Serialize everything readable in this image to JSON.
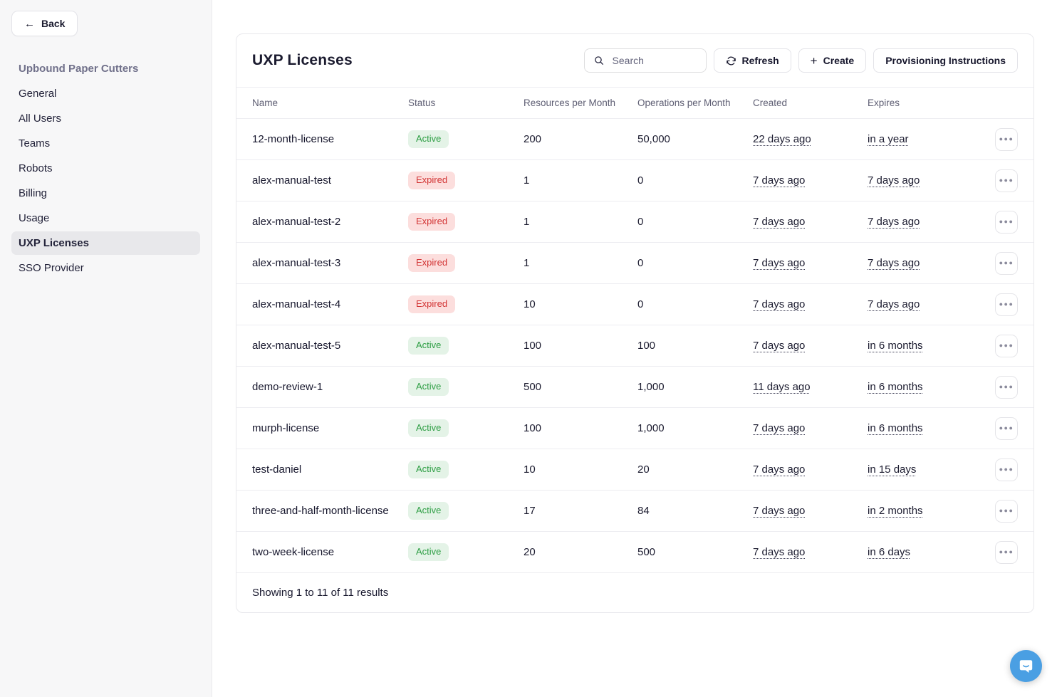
{
  "colors": {
    "active_badge_bg": "#e4f3e7",
    "active_badge_text": "#2e9e44",
    "expired_badge_bg": "#fcdedd",
    "expired_badge_text": "#d23434",
    "chat_bubble_bg": "#4a9fe3"
  },
  "sidebar": {
    "back_label": "Back",
    "org_name": "Upbound Paper Cutters",
    "items": [
      {
        "label": "General",
        "selected": false
      },
      {
        "label": "All Users",
        "selected": false
      },
      {
        "label": "Teams",
        "selected": false
      },
      {
        "label": "Robots",
        "selected": false
      },
      {
        "label": "Billing",
        "selected": false
      },
      {
        "label": "Usage",
        "selected": false
      },
      {
        "label": "UXP Licenses",
        "selected": true
      },
      {
        "label": "SSO Provider",
        "selected": false
      }
    ]
  },
  "header": {
    "title": "UXP Licenses",
    "search_placeholder": "Search",
    "refresh_label": "Refresh",
    "create_label": "Create",
    "provisioning_label": "Provisioning Instructions"
  },
  "table": {
    "columns": [
      "Name",
      "Status",
      "Resources per Month",
      "Operations per Month",
      "Created",
      "Expires"
    ],
    "rows": [
      {
        "name": "12-month-license",
        "status": "Active",
        "resources": "200",
        "operations": "50,000",
        "created": "22 days ago",
        "expires": "in a year"
      },
      {
        "name": "alex-manual-test",
        "status": "Expired",
        "resources": "1",
        "operations": "0",
        "created": "7 days ago",
        "expires": "7 days ago"
      },
      {
        "name": "alex-manual-test-2",
        "status": "Expired",
        "resources": "1",
        "operations": "0",
        "created": "7 days ago",
        "expires": "7 days ago"
      },
      {
        "name": "alex-manual-test-3",
        "status": "Expired",
        "resources": "1",
        "operations": "0",
        "created": "7 days ago",
        "expires": "7 days ago"
      },
      {
        "name": "alex-manual-test-4",
        "status": "Expired",
        "resources": "10",
        "operations": "0",
        "created": "7 days ago",
        "expires": "7 days ago"
      },
      {
        "name": "alex-manual-test-5",
        "status": "Active",
        "resources": "100",
        "operations": "100",
        "created": "7 days ago",
        "expires": "in 6 months"
      },
      {
        "name": "demo-review-1",
        "status": "Active",
        "resources": "500",
        "operations": "1,000",
        "created": "11 days ago",
        "expires": "in 6 months"
      },
      {
        "name": "murph-license",
        "status": "Active",
        "resources": "100",
        "operations": "1,000",
        "created": "7 days ago",
        "expires": "in 6 months"
      },
      {
        "name": "test-daniel",
        "status": "Active",
        "resources": "10",
        "operations": "20",
        "created": "7 days ago",
        "expires": "in 15 days"
      },
      {
        "name": "three-and-half-month-license",
        "status": "Active",
        "resources": "17",
        "operations": "84",
        "created": "7 days ago",
        "expires": "in 2 months"
      },
      {
        "name": "two-week-license",
        "status": "Active",
        "resources": "20",
        "operations": "500",
        "created": "7 days ago",
        "expires": "in 6 days"
      }
    ],
    "footer_text": "Showing 1 to 11 of 11 results"
  }
}
